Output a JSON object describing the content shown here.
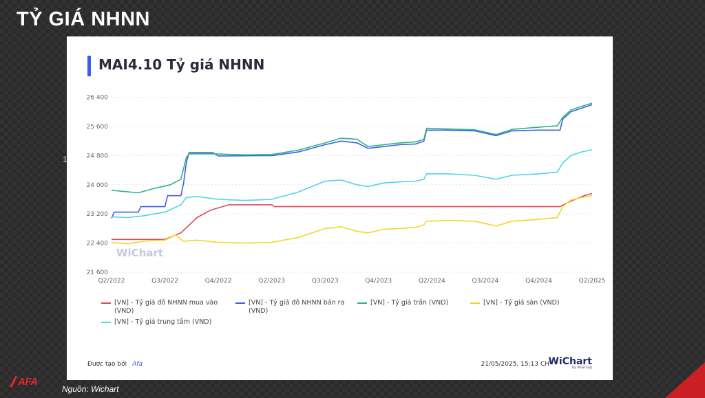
{
  "slide": {
    "title": "TỶ GIÁ NHNN",
    "source": "Nguồn: Wichart",
    "logo_text": "AFA",
    "stray_text": "1"
  },
  "card": {
    "chart_title": "MAI4.10 Tỷ giá NHNN",
    "created_by_label": "Được tạo bởi",
    "created_by": "Afa",
    "timestamp": "21/05/2025, 15:13 CH",
    "brand_name": "WiChart",
    "brand_sub": "by WiGroup",
    "watermark": "WiChart"
  },
  "colors": {
    "accent": "#3a5cf0",
    "red": "#dc4a5d",
    "blue": "#3f5ee8",
    "green": "#2bb57c",
    "yellow": "#f2d729",
    "cyan": "#4dd4ea"
  },
  "chart_data": {
    "type": "line",
    "title": "MAI4.10 Tỷ giá NHNN",
    "x_ticks": [
      "Q2/2022",
      "Q3/2022",
      "Q4/2022",
      "Q2/2023",
      "Q3/2023",
      "Q4/2023",
      "Q2/2024",
      "Q3/2024",
      "Q4/2024",
      "Q2/2025"
    ],
    "y_ticks": [
      21600,
      22400,
      23200,
      24000,
      24800,
      25600,
      26400
    ],
    "y_tick_labels": [
      "21 600",
      "22 400",
      "23 200",
      "24 000",
      "24 800",
      "25 600",
      "26 400"
    ],
    "ylim": [
      21600,
      26600
    ],
    "xlim": [
      0,
      9
    ],
    "grid": true,
    "legend_position": "bottom",
    "series": [
      {
        "name": "[VN] - Tỷ giá đô NHNN mua vào (VND)",
        "color": "#dc4a5d",
        "points": [
          [
            0,
            22500
          ],
          [
            1.0,
            22500
          ],
          [
            1.3,
            22680
          ],
          [
            1.6,
            23100
          ],
          [
            1.85,
            23300
          ],
          [
            2.2,
            23450
          ],
          [
            3.0,
            23450
          ],
          [
            3.05,
            23400
          ],
          [
            8.4,
            23400
          ],
          [
            8.6,
            23550
          ],
          [
            8.85,
            23700
          ],
          [
            9,
            23760
          ]
        ]
      },
      {
        "name": "[VN] - Tỷ giá đô NHNN bán ra (VND)",
        "color": "#3f5ee8",
        "points": [
          [
            0,
            23080
          ],
          [
            0.05,
            23250
          ],
          [
            0.5,
            23250
          ],
          [
            0.55,
            23400
          ],
          [
            1.0,
            23400
          ],
          [
            1.05,
            23700
          ],
          [
            1.3,
            23700
          ],
          [
            1.35,
            24050
          ],
          [
            1.4,
            24600
          ],
          [
            1.45,
            24880
          ],
          [
            1.9,
            24880
          ],
          [
            2.0,
            24790
          ],
          [
            3.0,
            24800
          ],
          [
            3.5,
            24900
          ],
          [
            4.0,
            25100
          ],
          [
            4.3,
            25200
          ],
          [
            4.6,
            25150
          ],
          [
            4.8,
            25000
          ],
          [
            5.1,
            25050
          ],
          [
            5.4,
            25100
          ],
          [
            5.7,
            25120
          ],
          [
            5.85,
            25200
          ],
          [
            5.9,
            25500
          ],
          [
            6.3,
            25500
          ],
          [
            6.8,
            25480
          ],
          [
            7.2,
            25350
          ],
          [
            7.5,
            25480
          ],
          [
            8.0,
            25500
          ],
          [
            8.4,
            25500
          ],
          [
            8.45,
            25800
          ],
          [
            8.6,
            26000
          ],
          [
            8.8,
            26100
          ],
          [
            9,
            26200
          ]
        ]
      },
      {
        "name": "[VN] - Tỷ giá trần (VND)",
        "color": "#2bb57c",
        "points": [
          [
            0,
            23850
          ],
          [
            0.2,
            23820
          ],
          [
            0.5,
            23780
          ],
          [
            0.8,
            23900
          ],
          [
            1.1,
            24000
          ],
          [
            1.3,
            24150
          ],
          [
            1.4,
            24750
          ],
          [
            1.45,
            24850
          ],
          [
            1.9,
            24850
          ],
          [
            2.5,
            24820
          ],
          [
            3.0,
            24830
          ],
          [
            3.5,
            24950
          ],
          [
            4.0,
            25150
          ],
          [
            4.3,
            25280
          ],
          [
            4.6,
            25250
          ],
          [
            4.8,
            25050
          ],
          [
            5.1,
            25100
          ],
          [
            5.4,
            25150
          ],
          [
            5.7,
            25180
          ],
          [
            5.85,
            25250
          ],
          [
            5.9,
            25550
          ],
          [
            6.3,
            25530
          ],
          [
            6.8,
            25510
          ],
          [
            7.2,
            25380
          ],
          [
            7.5,
            25520
          ],
          [
            8.0,
            25580
          ],
          [
            8.35,
            25620
          ],
          [
            8.45,
            25850
          ],
          [
            8.6,
            26050
          ],
          [
            8.8,
            26150
          ],
          [
            9,
            26240
          ]
        ]
      },
      {
        "name": "[VN] - Tỷ giá sàn (VND)",
        "color": "#f2d729",
        "points": [
          [
            0,
            22420
          ],
          [
            0.3,
            22380
          ],
          [
            0.6,
            22450
          ],
          [
            1.0,
            22480
          ],
          [
            1.2,
            22620
          ],
          [
            1.3,
            22500
          ],
          [
            1.35,
            22450
          ],
          [
            1.6,
            22480
          ],
          [
            2.0,
            22420
          ],
          [
            2.5,
            22400
          ],
          [
            3.0,
            22420
          ],
          [
            3.5,
            22550
          ],
          [
            4.0,
            22800
          ],
          [
            4.3,
            22850
          ],
          [
            4.6,
            22720
          ],
          [
            4.8,
            22680
          ],
          [
            5.1,
            22780
          ],
          [
            5.4,
            22800
          ],
          [
            5.7,
            22830
          ],
          [
            5.85,
            22900
          ],
          [
            5.9,
            23000
          ],
          [
            6.3,
            23020
          ],
          [
            6.8,
            23000
          ],
          [
            7.2,
            22870
          ],
          [
            7.5,
            23000
          ],
          [
            8.0,
            23050
          ],
          [
            8.35,
            23100
          ],
          [
            8.45,
            23400
          ],
          [
            8.6,
            23580
          ],
          [
            8.8,
            23650
          ],
          [
            9,
            23700
          ]
        ]
      },
      {
        "name": "[VN] - Tỷ giá trung tâm (VND)",
        "color": "#4dd4ea",
        "points": [
          [
            0,
            23120
          ],
          [
            0.3,
            23100
          ],
          [
            0.6,
            23150
          ],
          [
            1.0,
            23250
          ],
          [
            1.3,
            23450
          ],
          [
            1.4,
            23650
          ],
          [
            1.6,
            23680
          ],
          [
            2.0,
            23600
          ],
          [
            2.5,
            23570
          ],
          [
            3.0,
            23600
          ],
          [
            3.5,
            23800
          ],
          [
            4.0,
            24100
          ],
          [
            4.3,
            24130
          ],
          [
            4.6,
            24000
          ],
          [
            4.8,
            23950
          ],
          [
            5.1,
            24050
          ],
          [
            5.4,
            24080
          ],
          [
            5.7,
            24100
          ],
          [
            5.85,
            24150
          ],
          [
            5.9,
            24300
          ],
          [
            6.3,
            24300
          ],
          [
            6.8,
            24260
          ],
          [
            7.2,
            24150
          ],
          [
            7.5,
            24260
          ],
          [
            8.0,
            24300
          ],
          [
            8.35,
            24350
          ],
          [
            8.45,
            24600
          ],
          [
            8.6,
            24800
          ],
          [
            8.8,
            24900
          ],
          [
            9,
            24960
          ]
        ]
      }
    ]
  }
}
